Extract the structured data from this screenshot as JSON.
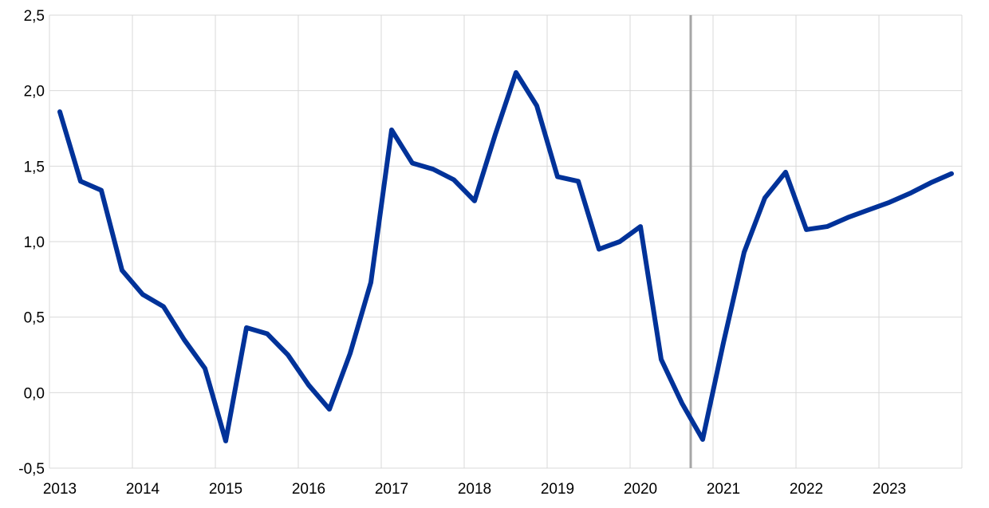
{
  "chart_data": {
    "type": "line",
    "title": "",
    "xlabel": "",
    "ylabel": "",
    "ylim": [
      -0.5,
      2.5
    ],
    "yticks": [
      "-0,5",
      "0,0",
      "0,5",
      "1,0",
      "1,5",
      "2,0",
      "2,5"
    ],
    "ytick_values": [
      -0.5,
      0,
      0.5,
      1,
      1.5,
      2,
      2.5
    ],
    "xticks": [
      "2013",
      "2014",
      "2015",
      "2016",
      "2017",
      "2018",
      "2019",
      "2020",
      "2021",
      "2022",
      "2023"
    ],
    "grid": true,
    "legend": "none",
    "projection_cutoff": "2020-Q3",
    "colors": {
      "series": "#003299",
      "cutoff": "#a6a6a6",
      "grid": "#d9d9d9"
    },
    "x": [
      "2013-Q1",
      "2013-Q2",
      "2013-Q3",
      "2013-Q4",
      "2014-Q1",
      "2014-Q2",
      "2014-Q3",
      "2014-Q4",
      "2015-Q1",
      "2015-Q2",
      "2015-Q3",
      "2015-Q4",
      "2016-Q1",
      "2016-Q2",
      "2016-Q3",
      "2016-Q4",
      "2017-Q1",
      "2017-Q2",
      "2017-Q3",
      "2017-Q4",
      "2018-Q1",
      "2018-Q2",
      "2018-Q3",
      "2018-Q4",
      "2019-Q1",
      "2019-Q2",
      "2019-Q3",
      "2019-Q4",
      "2020-Q1",
      "2020-Q2",
      "2020-Q3",
      "2020-Q4",
      "2021-Q1",
      "2021-Q2",
      "2021-Q3",
      "2021-Q4",
      "2022-Q1",
      "2022-Q2",
      "2022-Q3",
      "2022-Q4",
      "2023-Q1",
      "2023-Q2",
      "2023-Q3",
      "2023-Q4"
    ],
    "series": [
      {
        "values": [
          1.86,
          1.4,
          1.34,
          0.81,
          0.65,
          0.57,
          0.35,
          0.16,
          -0.32,
          0.43,
          0.39,
          0.25,
          0.05,
          -0.11,
          0.26,
          0.73,
          1.74,
          1.52,
          1.48,
          1.41,
          1.27,
          1.71,
          2.12,
          1.9,
          1.43,
          1.4,
          0.95,
          1.0,
          1.1,
          0.22,
          -0.07,
          -0.31,
          0.33,
          0.93,
          1.29,
          1.46,
          1.08,
          1.1,
          1.16,
          1.21,
          1.26,
          1.32,
          1.39,
          1.45
        ]
      }
    ]
  }
}
